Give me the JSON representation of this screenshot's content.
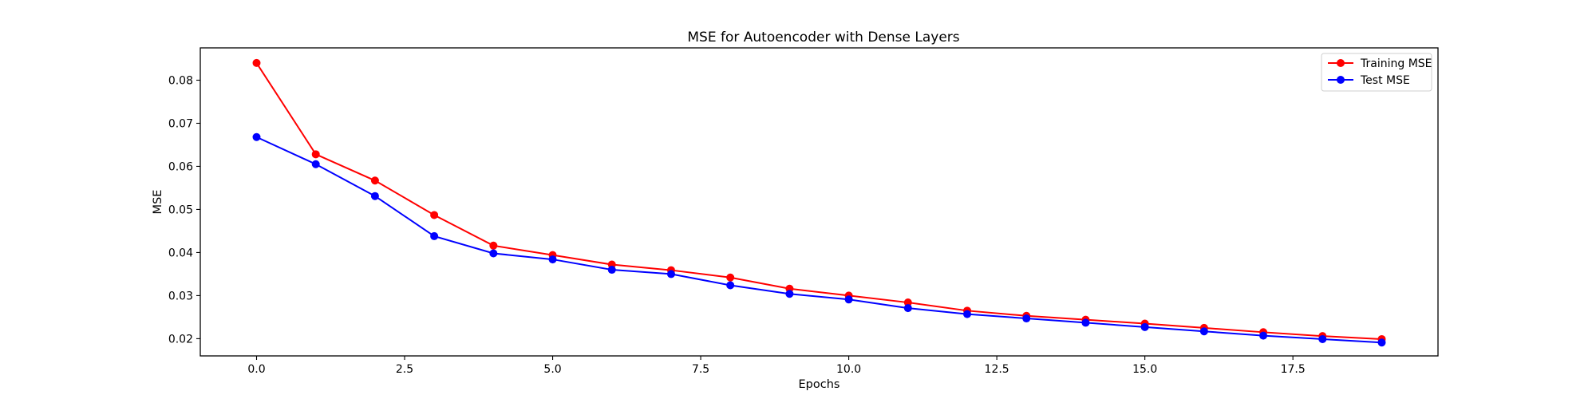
{
  "chart_data": {
    "type": "line",
    "title": "MSE for Autoencoder with Dense Layers",
    "xlabel": "Epochs",
    "ylabel": "MSE",
    "xlim": [
      -0.95,
      19.95
    ],
    "ylim": [
      0.016,
      0.0875
    ],
    "xticks": [
      0.0,
      2.5,
      5.0,
      7.5,
      10.0,
      12.5,
      15.0,
      17.5
    ],
    "xtick_labels": [
      "0.0",
      "2.5",
      "5.0",
      "7.5",
      "10.0",
      "12.5",
      "15.0",
      "17.5"
    ],
    "yticks": [
      0.02,
      0.03,
      0.04,
      0.05,
      0.06,
      0.07,
      0.08
    ],
    "ytick_labels": [
      "0.02",
      "0.03",
      "0.04",
      "0.05",
      "0.06",
      "0.07",
      "0.08"
    ],
    "grid": false,
    "legend_position": "top-right",
    "x": [
      0,
      1,
      2,
      3,
      4,
      5,
      6,
      7,
      8,
      9,
      10,
      11,
      12,
      13,
      14,
      15,
      16,
      17,
      18,
      19
    ],
    "series": [
      {
        "name": "Training MSE",
        "color": "#ff0000",
        "marker": "circle",
        "values": [
          0.084,
          0.0628,
          0.0567,
          0.0487,
          0.0416,
          0.0394,
          0.0372,
          0.0359,
          0.0342,
          0.0316,
          0.03,
          0.0284,
          0.0265,
          0.0253,
          0.0244,
          0.0235,
          0.0225,
          0.0215,
          0.0206,
          0.0199
        ]
      },
      {
        "name": "Test MSE",
        "color": "#0000ff",
        "marker": "circle",
        "values": [
          0.0668,
          0.0605,
          0.0531,
          0.0438,
          0.0398,
          0.0384,
          0.036,
          0.035,
          0.0324,
          0.0304,
          0.0291,
          0.0271,
          0.0257,
          0.0247,
          0.0237,
          0.0227,
          0.0217,
          0.0207,
          0.0199,
          0.0191
        ]
      }
    ]
  }
}
